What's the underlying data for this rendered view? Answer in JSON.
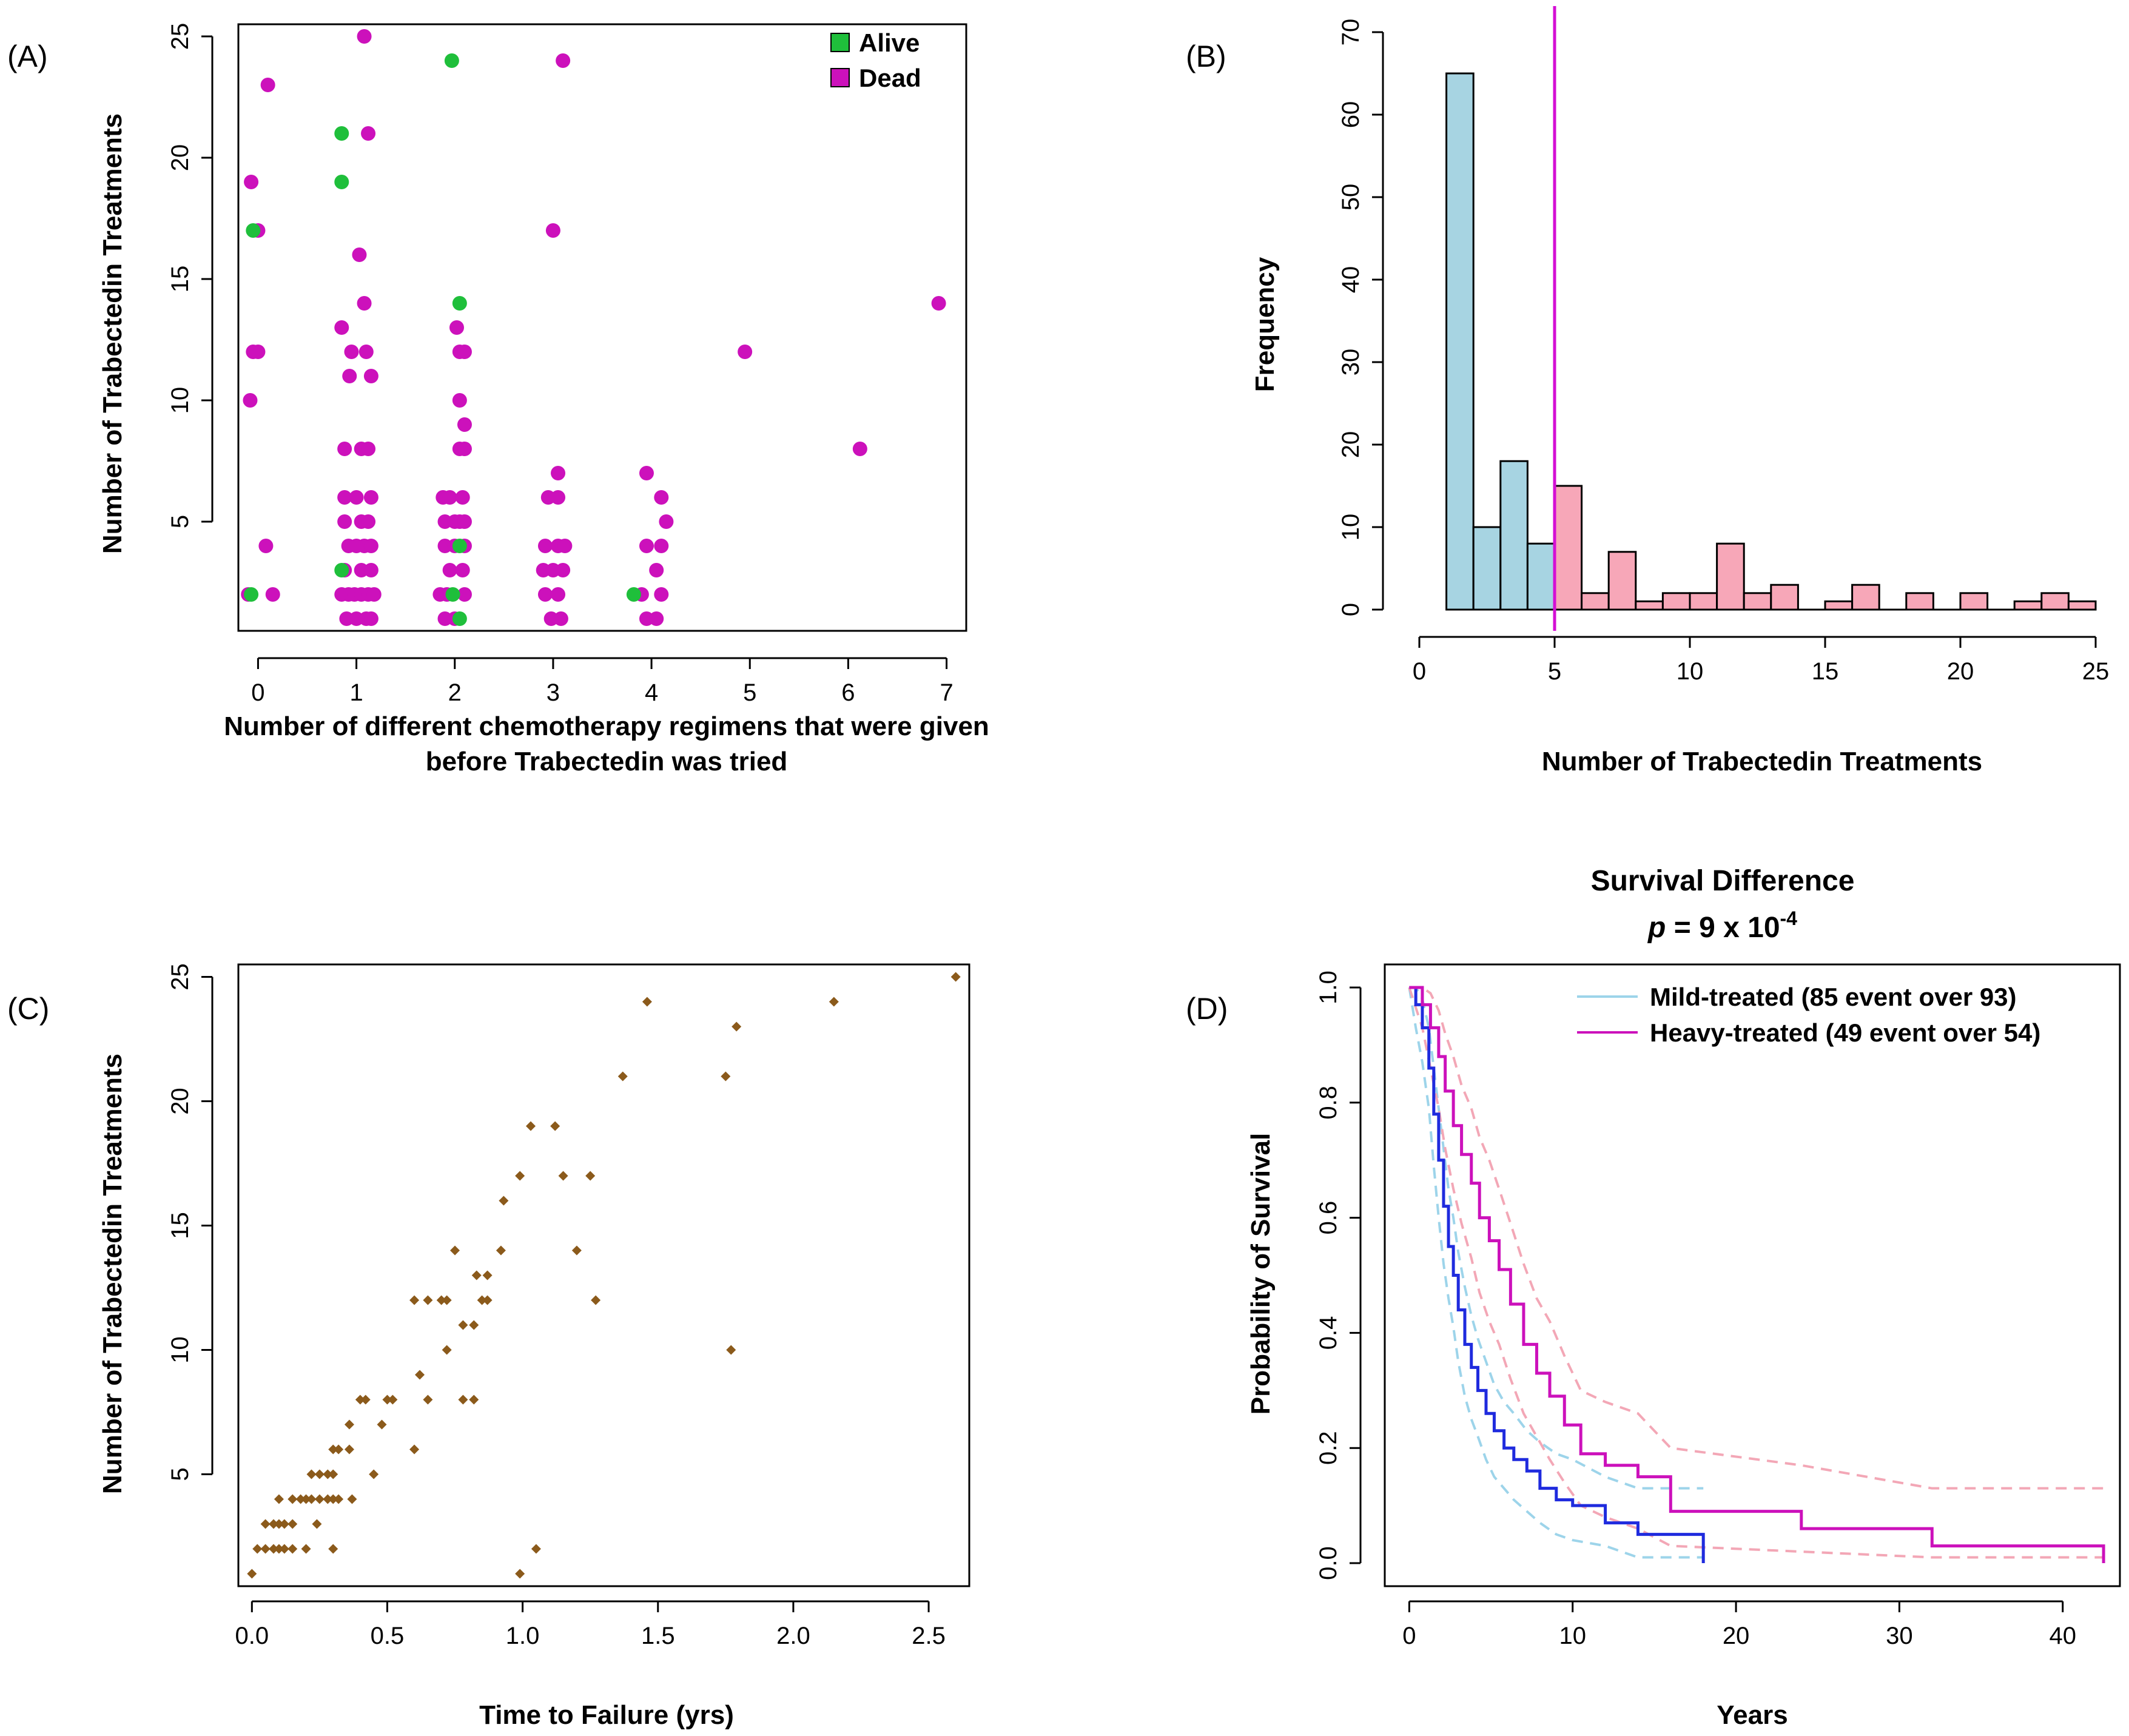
{
  "colors": {
    "alive": "#1fbf3b",
    "dead": "#cc11bb",
    "hist_low": "#a7d4e2",
    "hist_high": "#f7a7b8",
    "cutoff": "#d40fd4",
    "brown": "#8b5a1b",
    "mild": "#1f2bde",
    "mild_ci": "#9dd4ea",
    "heavy": "#cc11bb",
    "heavy_ci": "#f3a7b6"
  },
  "chart_data": [
    {
      "panel": "(A)",
      "type": "scatter",
      "xlabel_lines": [
        "Number of different chemotherapy regimens that were given",
        "before Trabectedin was tried"
      ],
      "ylabel": "Number of Trabectedin Treatments",
      "xlim": [
        -0.2,
        7.2
      ],
      "ylim": [
        0.5,
        25.5
      ],
      "xticks": [
        0,
        1,
        2,
        3,
        4,
        5,
        6,
        7
      ],
      "yticks": [
        5,
        10,
        15,
        20,
        25
      ],
      "legend": [
        {
          "label": "Alive",
          "color_key": "alive"
        },
        {
          "label": "Dead",
          "color_key": "dead"
        }
      ],
      "series": [
        {
          "name": "Alive",
          "color_key": "alive",
          "points": [
            [
              -0.05,
              17
            ],
            [
              -0.07,
              2
            ],
            [
              0.85,
              21
            ],
            [
              0.85,
              19
            ],
            [
              0.85,
              3
            ],
            [
              1.97,
              24
            ],
            [
              2.05,
              14
            ],
            [
              2.05,
              4
            ],
            [
              2.05,
              1
            ],
            [
              1.98,
              2
            ],
            [
              3.82,
              2
            ]
          ]
        },
        {
          "name": "Dead",
          "color_key": "dead",
          "points": [
            [
              -0.07,
              19
            ],
            [
              0.0,
              17
            ],
            [
              -0.05,
              12
            ],
            [
              0.0,
              12
            ],
            [
              -0.08,
              10
            ],
            [
              0.08,
              4
            ],
            [
              0.15,
              2
            ],
            [
              -0.1,
              2
            ],
            [
              0.1,
              23
            ],
            [
              1.08,
              25
            ],
            [
              1.12,
              21
            ],
            [
              1.03,
              16
            ],
            [
              1.08,
              14
            ],
            [
              0.85,
              13
            ],
            [
              0.95,
              12
            ],
            [
              1.1,
              12
            ],
            [
              0.93,
              11
            ],
            [
              1.15,
              11
            ],
            [
              0.88,
              8
            ],
            [
              1.05,
              8
            ],
            [
              1.12,
              8
            ],
            [
              0.88,
              6
            ],
            [
              1.0,
              6
            ],
            [
              1.15,
              6
            ],
            [
              0.88,
              5
            ],
            [
              1.05,
              5
            ],
            [
              1.12,
              5
            ],
            [
              0.92,
              4
            ],
            [
              1.0,
              4
            ],
            [
              1.08,
              4
            ],
            [
              1.15,
              4
            ],
            [
              0.88,
              3
            ],
            [
              1.05,
              3
            ],
            [
              1.15,
              3
            ],
            [
              0.85,
              2
            ],
            [
              0.92,
              2
            ],
            [
              0.98,
              2
            ],
            [
              1.05,
              2
            ],
            [
              1.12,
              2
            ],
            [
              1.18,
              2
            ],
            [
              0.9,
              1
            ],
            [
              1.0,
              1
            ],
            [
              1.1,
              1
            ],
            [
              1.15,
              1
            ],
            [
              2.02,
              13
            ],
            [
              2.05,
              12
            ],
            [
              2.1,
              12
            ],
            [
              2.05,
              10
            ],
            [
              2.1,
              9
            ],
            [
              2.05,
              8
            ],
            [
              2.1,
              8
            ],
            [
              1.88,
              6
            ],
            [
              1.95,
              6
            ],
            [
              2.08,
              6
            ],
            [
              1.9,
              5
            ],
            [
              2.0,
              5
            ],
            [
              2.05,
              5
            ],
            [
              2.1,
              5
            ],
            [
              1.9,
              4
            ],
            [
              2.0,
              4
            ],
            [
              2.1,
              4
            ],
            [
              1.95,
              3
            ],
            [
              2.08,
              3
            ],
            [
              1.85,
              2
            ],
            [
              1.92,
              2
            ],
            [
              2.1,
              2
            ],
            [
              1.9,
              1
            ],
            [
              2.0,
              1
            ],
            [
              3.1,
              24
            ],
            [
              3.0,
              17
            ],
            [
              3.05,
              7
            ],
            [
              2.95,
              6
            ],
            [
              3.05,
              6
            ],
            [
              2.92,
              4
            ],
            [
              3.05,
              4
            ],
            [
              3.12,
              4
            ],
            [
              2.9,
              3
            ],
            [
              3.0,
              3
            ],
            [
              3.1,
              3
            ],
            [
              2.92,
              2
            ],
            [
              3.05,
              2
            ],
            [
              2.98,
              1
            ],
            [
              3.08,
              1
            ],
            [
              3.95,
              7
            ],
            [
              4.1,
              6
            ],
            [
              4.15,
              5
            ],
            [
              3.95,
              4
            ],
            [
              4.1,
              4
            ],
            [
              4.05,
              3
            ],
            [
              3.9,
              2
            ],
            [
              4.1,
              2
            ],
            [
              3.95,
              1
            ],
            [
              4.05,
              1
            ],
            [
              4.95,
              12
            ],
            [
              6.12,
              8
            ],
            [
              6.92,
              14
            ]
          ]
        }
      ]
    },
    {
      "panel": "(B)",
      "type": "bar",
      "xlabel": "Number of Trabectedin Treatments",
      "ylabel": "Frequency",
      "xlim": [
        0,
        25
      ],
      "ylim": [
        0,
        70
      ],
      "xticks": [
        0,
        5,
        10,
        15,
        20,
        25
      ],
      "yticks": [
        0,
        10,
        20,
        30,
        40,
        50,
        60,
        70
      ],
      "cutoff": 5,
      "bins": [
        {
          "start": 1,
          "end": 2,
          "count": 65
        },
        {
          "start": 2,
          "end": 3,
          "count": 10
        },
        {
          "start": 3,
          "end": 4,
          "count": 18
        },
        {
          "start": 4,
          "end": 5,
          "count": 8
        },
        {
          "start": 5,
          "end": 6,
          "count": 15
        },
        {
          "start": 6,
          "end": 7,
          "count": 2
        },
        {
          "start": 7,
          "end": 8,
          "count": 7
        },
        {
          "start": 8,
          "end": 9,
          "count": 1
        },
        {
          "start": 9,
          "end": 10,
          "count": 2
        },
        {
          "start": 10,
          "end": 11,
          "count": 2
        },
        {
          "start": 11,
          "end": 12,
          "count": 8
        },
        {
          "start": 12,
          "end": 13,
          "count": 2
        },
        {
          "start": 13,
          "end": 14,
          "count": 3
        },
        {
          "start": 14,
          "end": 15,
          "count": 0
        },
        {
          "start": 15,
          "end": 16,
          "count": 1
        },
        {
          "start": 16,
          "end": 17,
          "count": 3
        },
        {
          "start": 17,
          "end": 18,
          "count": 0
        },
        {
          "start": 18,
          "end": 19,
          "count": 2
        },
        {
          "start": 19,
          "end": 20,
          "count": 0
        },
        {
          "start": 20,
          "end": 21,
          "count": 2
        },
        {
          "start": 21,
          "end": 22,
          "count": 0
        },
        {
          "start": 22,
          "end": 23,
          "count": 1
        },
        {
          "start": 23,
          "end": 24,
          "count": 2
        },
        {
          "start": 24,
          "end": 25,
          "count": 1
        }
      ]
    },
    {
      "panel": "(C)",
      "type": "scatter",
      "xlabel": "Time to Failure (yrs)",
      "ylabel": "Number of Trabectedin Treatments",
      "xlim": [
        -0.05,
        2.65
      ],
      "ylim": [
        0.5,
        25.5
      ],
      "xticks": [
        0.0,
        0.5,
        1.0,
        1.5,
        2.0,
        2.5
      ],
      "xtick_labels": [
        "0.0",
        "0.5",
        "1.0",
        "1.5",
        "2.0",
        "2.5"
      ],
      "yticks": [
        5,
        10,
        15,
        20,
        25
      ],
      "points": [
        [
          0.0,
          1
        ],
        [
          0.02,
          2
        ],
        [
          0.05,
          2
        ],
        [
          0.08,
          2
        ],
        [
          0.1,
          2
        ],
        [
          0.12,
          2
        ],
        [
          0.15,
          2
        ],
        [
          0.2,
          2
        ],
        [
          0.3,
          2
        ],
        [
          0.05,
          3
        ],
        [
          0.08,
          3
        ],
        [
          0.1,
          3
        ],
        [
          0.12,
          3
        ],
        [
          0.15,
          3
        ],
        [
          0.24,
          3
        ],
        [
          0.1,
          4
        ],
        [
          0.15,
          4
        ],
        [
          0.18,
          4
        ],
        [
          0.2,
          4
        ],
        [
          0.22,
          4
        ],
        [
          0.25,
          4
        ],
        [
          0.28,
          4
        ],
        [
          0.3,
          4
        ],
        [
          0.32,
          4
        ],
        [
          0.37,
          4
        ],
        [
          0.22,
          5
        ],
        [
          0.25,
          5
        ],
        [
          0.28,
          5
        ],
        [
          0.3,
          5
        ],
        [
          0.45,
          5
        ],
        [
          0.3,
          6
        ],
        [
          0.32,
          6
        ],
        [
          0.36,
          6
        ],
        [
          0.6,
          6
        ],
        [
          0.36,
          7
        ],
        [
          0.48,
          7
        ],
        [
          0.4,
          8
        ],
        [
          0.42,
          8
        ],
        [
          0.5,
          8
        ],
        [
          0.52,
          8
        ],
        [
          0.65,
          8
        ],
        [
          0.78,
          8
        ],
        [
          0.82,
          8
        ],
        [
          0.62,
          9
        ],
        [
          0.72,
          10
        ],
        [
          0.78,
          11
        ],
        [
          0.82,
          11
        ],
        [
          0.6,
          12
        ],
        [
          0.65,
          12
        ],
        [
          0.7,
          12
        ],
        [
          0.72,
          12
        ],
        [
          0.85,
          12
        ],
        [
          0.87,
          12
        ],
        [
          1.27,
          12
        ],
        [
          0.83,
          13
        ],
        [
          0.87,
          13
        ],
        [
          0.75,
          14
        ],
        [
          0.92,
          14
        ],
        [
          1.2,
          14
        ],
        [
          0.93,
          16
        ],
        [
          0.99,
          17
        ],
        [
          1.15,
          17
        ],
        [
          1.25,
          17
        ],
        [
          1.03,
          19
        ],
        [
          1.12,
          19
        ],
        [
          1.37,
          21
        ],
        [
          1.75,
          21
        ],
        [
          1.46,
          24
        ],
        [
          2.15,
          24
        ],
        [
          1.79,
          23
        ],
        [
          2.6,
          25
        ],
        [
          1.77,
          10
        ],
        [
          0.99,
          1
        ],
        [
          1.05,
          2
        ]
      ]
    },
    {
      "panel": "(D)",
      "type": "line",
      "title": "Survival Difference",
      "subtitle_p": "p",
      "subtitle_eq": " = 9 x 10",
      "subtitle_exp": "-4",
      "xlabel": "Years",
      "ylabel": "Probability of Survival",
      "xlim": [
        -1.5,
        43.5
      ],
      "ylim": [
        -0.04,
        1.04
      ],
      "xticks": [
        0,
        10,
        20,
        30,
        40
      ],
      "yticks": [
        0.0,
        0.2,
        0.4,
        0.6,
        0.8,
        1.0
      ],
      "ytick_labels": [
        "0.0",
        "0.2",
        "0.4",
        "0.6",
        "0.8",
        "1.0"
      ],
      "series": [
        {
          "name": "Mild-treated (85 event over 93)",
          "color_key": "mild",
          "ci_color_key": "mild_ci",
          "x": [
            0,
            0.4,
            0.8,
            1.2,
            1.5,
            1.8,
            2.1,
            2.4,
            2.7,
            3.0,
            3.4,
            3.8,
            4.2,
            4.7,
            5.2,
            5.8,
            6.4,
            7.2,
            8.0,
            9.0,
            10.0,
            12.0,
            14.0,
            18.0
          ],
          "y": [
            1.0,
            0.97,
            0.93,
            0.86,
            0.78,
            0.7,
            0.62,
            0.55,
            0.5,
            0.44,
            0.38,
            0.34,
            0.3,
            0.26,
            0.23,
            0.2,
            0.18,
            0.16,
            0.13,
            0.11,
            0.1,
            0.07,
            0.05,
            0.0
          ],
          "upper": [
            1.0,
            1.0,
            0.98,
            0.93,
            0.86,
            0.79,
            0.72,
            0.65,
            0.6,
            0.54,
            0.48,
            0.43,
            0.39,
            0.35,
            0.31,
            0.28,
            0.26,
            0.23,
            0.21,
            0.19,
            0.18,
            0.15,
            0.13,
            0.13
          ],
          "lower": [
            1.0,
            0.93,
            0.87,
            0.79,
            0.69,
            0.6,
            0.52,
            0.46,
            0.41,
            0.35,
            0.29,
            0.25,
            0.22,
            0.18,
            0.15,
            0.13,
            0.11,
            0.09,
            0.07,
            0.05,
            0.04,
            0.03,
            0.01,
            0.01
          ]
        },
        {
          "name": "Heavy-treated (49 event over 54)",
          "color_key": "heavy",
          "ci_color_key": "heavy_ci",
          "x": [
            0,
            0.8,
            1.3,
            1.8,
            2.2,
            2.7,
            3.2,
            3.8,
            4.3,
            4.9,
            5.5,
            6.2,
            7.0,
            7.8,
            8.6,
            9.5,
            10.5,
            12.0,
            14.0,
            16.0,
            24.0,
            32.0,
            42.5
          ],
          "y": [
            1.0,
            0.97,
            0.93,
            0.88,
            0.82,
            0.76,
            0.71,
            0.66,
            0.6,
            0.56,
            0.51,
            0.45,
            0.38,
            0.33,
            0.29,
            0.24,
            0.19,
            0.17,
            0.15,
            0.09,
            0.06,
            0.03,
            0.0
          ],
          "upper": [
            1.0,
            1.0,
            0.99,
            0.96,
            0.92,
            0.88,
            0.83,
            0.79,
            0.74,
            0.7,
            0.65,
            0.59,
            0.52,
            0.46,
            0.42,
            0.36,
            0.3,
            0.28,
            0.26,
            0.2,
            0.17,
            0.13,
            0.13
          ],
          "lower": [
            1.0,
            0.93,
            0.86,
            0.79,
            0.72,
            0.65,
            0.59,
            0.53,
            0.47,
            0.42,
            0.38,
            0.32,
            0.26,
            0.22,
            0.18,
            0.14,
            0.1,
            0.08,
            0.06,
            0.03,
            0.02,
            0.01,
            0.01
          ]
        }
      ]
    }
  ]
}
